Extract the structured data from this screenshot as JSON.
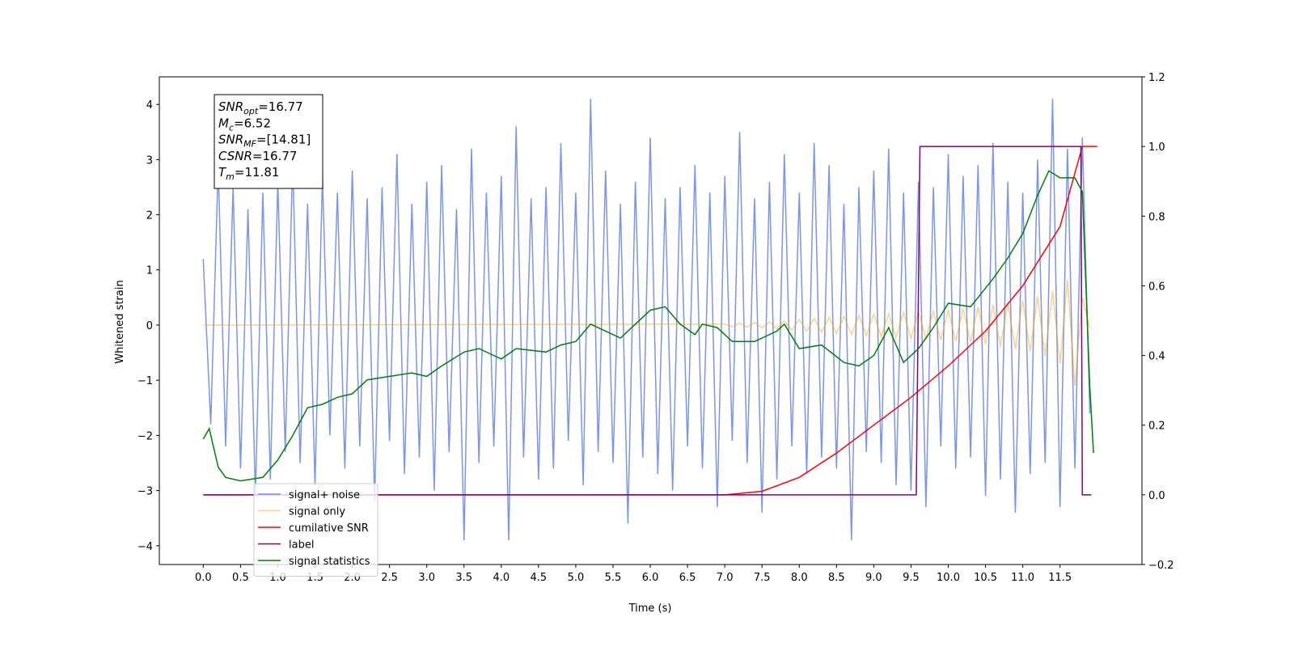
{
  "chart_data": {
    "type": "line",
    "xlabel": "Time (s)",
    "ylabel": "Whitened strain",
    "xlim": [
      -0.59,
      12.6
    ],
    "ylim": [
      -4.34,
      4.5
    ],
    "y2lim": [
      -0.2,
      1.2
    ],
    "xticks": [
      {
        "value": 0,
        "label": "0.0"
      },
      0.5,
      {
        "value": 1,
        "label": "1.0"
      },
      1.5,
      {
        "value": 2,
        "label": "2.0"
      },
      2.5,
      {
        "value": 3,
        "label": "3.0"
      },
      3.5,
      {
        "value": 4,
        "label": "4.0"
      },
      4.5,
      {
        "value": 5,
        "label": "5.0"
      },
      5.5,
      {
        "value": 6,
        "label": "6.0"
      },
      6.5,
      {
        "value": 7,
        "label": "7.0"
      },
      7.5,
      {
        "value": 8,
        "label": "8.0"
      },
      8.5,
      {
        "value": 9,
        "label": "9.0"
      },
      9.5,
      {
        "value": 10,
        "label": "10.0"
      },
      10.5,
      {
        "value": 11,
        "label": "11.0"
      },
      11.5
    ],
    "yticks": [
      {
        "value": -4,
        "label": "−4"
      },
      {
        "value": -3,
        "label": "−3"
      },
      {
        "value": -2,
        "label": "−2"
      },
      {
        "value": -1,
        "label": "−1"
      },
      0,
      1,
      2,
      3,
      4
    ],
    "y2ticks": [
      {
        "value": -0.2,
        "label": "−0.2"
      },
      {
        "value": 0,
        "label": "0.0"
      },
      0.2,
      0.4,
      0.6,
      0.8,
      {
        "value": 1,
        "label": "1.0"
      },
      1.2
    ],
    "annotation": [
      {
        "main": "SNR",
        "sub": "opt",
        "rest": "=16.77"
      },
      {
        "main": "M",
        "sub": "c",
        "rest": "=6.52"
      },
      {
        "main": "SNR",
        "sub": "MF",
        "rest": "=[14.81]"
      },
      {
        "main": "CSNR",
        "rest": "=16.77"
      },
      {
        "main": "T",
        "sub": "m",
        "rest": "=11.81"
      }
    ],
    "legend": "lower left",
    "series": [
      {
        "name": "signal+ noise",
        "color": "#4169e1",
        "alpha": 0.7,
        "x": [
          0,
          0.1,
          0.2,
          0.3,
          0.4,
          0.5,
          0.6,
          0.7,
          0.8,
          0.9,
          1,
          1.1,
          1.2,
          1.3,
          1.4,
          1.5,
          1.6,
          1.7,
          1.8,
          1.9,
          2,
          2.1,
          2.2,
          2.3,
          2.4,
          2.5,
          2.6,
          2.7,
          2.8,
          2.9,
          3,
          3.1,
          3.2,
          3.3,
          3.4,
          3.5,
          3.6,
          3.7,
          3.8,
          3.9,
          4,
          4.1,
          4.2,
          4.3,
          4.4,
          4.5,
          4.6,
          4.7,
          4.8,
          4.9,
          5,
          5.1,
          5.2,
          5.3,
          5.4,
          5.5,
          5.6,
          5.7,
          5.8,
          5.9,
          6,
          6.1,
          6.2,
          6.3,
          6.4,
          6.5,
          6.6,
          6.7,
          6.8,
          6.9,
          7,
          7.1,
          7.2,
          7.3,
          7.4,
          7.5,
          7.6,
          7.7,
          7.8,
          7.9,
          8,
          8.1,
          8.2,
          8.3,
          8.4,
          8.5,
          8.6,
          8.7,
          8.8,
          8.9,
          9,
          9.1,
          9.2,
          9.3,
          9.4,
          9.5,
          9.6,
          9.7,
          9.8,
          9.9,
          10,
          10.1,
          10.2,
          10.3,
          10.4,
          10.5,
          10.6,
          10.7,
          10.8,
          10.9,
          11,
          11.1,
          11.2,
          11.3,
          11.4,
          11.5,
          11.6,
          11.7,
          11.8,
          11.9
        ],
        "values": [
          1.2,
          -1.8,
          2.9,
          -2.2,
          2.5,
          -2.6,
          2.1,
          -3.1,
          2.4,
          -2.8,
          2.6,
          -2.3,
          3.0,
          -2.5,
          2.2,
          -2.9,
          2.7,
          -2.0,
          2.4,
          -2.6,
          2.8,
          -2.2,
          2.3,
          -3.2,
          2.5,
          -2.1,
          3.1,
          -2.7,
          2.2,
          -2.4,
          2.6,
          -3.0,
          2.9,
          -2.3,
          2.1,
          -3.9,
          3.2,
          -2.5,
          2.4,
          -2.2,
          2.7,
          -3.9,
          3.6,
          -2.4,
          2.3,
          -2.8,
          2.5,
          -2.6,
          3.3,
          -2.1,
          2.4,
          -2.9,
          4.1,
          -2.3,
          2.8,
          -2.5,
          2.2,
          -3.6,
          2.6,
          -2.4,
          3.4,
          -2.7,
          2.3,
          -3.0,
          2.5,
          -2.2,
          2.9,
          -2.6,
          2.4,
          -3.3,
          2.7,
          -2.1,
          3.5,
          -2.5,
          2.3,
          -3.4,
          2.6,
          -2.8,
          3.1,
          -2.2,
          2.4,
          -2.7,
          3.3,
          -2.4,
          2.9,
          -2.6,
          2.2,
          -3.9,
          2.5,
          -2.3,
          2.8,
          -2.5,
          3.2,
          -2.9,
          2.4,
          -3.0,
          2.6,
          -3.3,
          2.5,
          -2.2,
          3.1,
          -2.6,
          2.7,
          -2.4,
          2.9,
          -3.1,
          3.3,
          -2.8,
          2.6,
          -3.4,
          2.4,
          -2.7,
          3.0,
          -2.5,
          4.1,
          -3.3,
          3.2,
          -2.6,
          3.4,
          -1.6
        ]
      },
      {
        "name": "signal only",
        "color": "#ffa500",
        "alpha": 0.5,
        "x": [
          0,
          7,
          7.1,
          7.2,
          7.3,
          7.4,
          7.5,
          7.6,
          7.7,
          7.8,
          7.9,
          8,
          8.1,
          8.2,
          8.3,
          8.4,
          8.5,
          8.6,
          8.7,
          8.8,
          8.9,
          9,
          9.1,
          9.2,
          9.3,
          9.4,
          9.5,
          9.6,
          9.7,
          9.8,
          9.9,
          10,
          10.1,
          10.2,
          10.3,
          10.4,
          10.5,
          10.6,
          10.7,
          10.8,
          10.9,
          11,
          11.1,
          11.2,
          11.3,
          11.4,
          11.5,
          11.6,
          11.7,
          11.8,
          11.9
        ],
        "values": [
          0,
          0.02,
          -0.03,
          0.04,
          -0.04,
          0.05,
          -0.05,
          0.06,
          -0.07,
          0.08,
          -0.09,
          0.1,
          -0.11,
          0.12,
          -0.13,
          0.14,
          -0.15,
          0.16,
          -0.17,
          0.18,
          -0.19,
          0.2,
          -0.21,
          0.21,
          -0.22,
          0.23,
          -0.24,
          0.24,
          -0.25,
          0.26,
          -0.27,
          0.28,
          -0.29,
          0.3,
          -0.31,
          0.33,
          -0.35,
          0.37,
          -0.39,
          0.41,
          -0.43,
          0.45,
          -0.48,
          0.52,
          -0.56,
          0.62,
          -0.7,
          0.82,
          -1.1,
          0.5,
          -0.05
        ]
      },
      {
        "name": "cumilative SNR",
        "color": "#ff0000",
        "alpha": 1,
        "axis": "y2",
        "x": [
          0,
          7,
          7.5,
          8,
          8.5,
          9,
          9.5,
          10,
          10.5,
          11,
          11.5,
          11.8,
          12
        ],
        "values": [
          0,
          0,
          0.01,
          0.05,
          0.12,
          0.2,
          0.28,
          0.37,
          0.47,
          0.6,
          0.77,
          1,
          1
        ]
      },
      {
        "name": "label",
        "color": "#800080",
        "alpha": 1,
        "axis": "y2",
        "x": [
          0,
          9.57,
          9.62,
          11.78,
          11.8,
          11.92
        ],
        "values": [
          0,
          0,
          1,
          1,
          0,
          0
        ]
      },
      {
        "name": "signal statistics",
        "color": "#008000",
        "alpha": 1,
        "axis": "y2",
        "x": [
          0,
          0.08,
          0.2,
          0.3,
          0.5,
          0.8,
          1,
          1.2,
          1.4,
          1.6,
          1.8,
          2,
          2.2,
          2.5,
          2.8,
          3,
          3.2,
          3.5,
          3.7,
          4,
          4.2,
          4.6,
          4.8,
          5,
          5.2,
          5.4,
          5.6,
          5.8,
          6,
          6.2,
          6.4,
          6.6,
          6.7,
          6.9,
          7.1,
          7.4,
          7.7,
          7.8,
          8,
          8.3,
          8.6,
          8.8,
          9,
          9.2,
          9.4,
          9.6,
          9.8,
          10,
          10.3,
          10.6,
          10.8,
          11,
          11.2,
          11.35,
          11.5,
          11.7,
          11.8,
          11.9,
          11.95
        ],
        "values": [
          0.16,
          0.19,
          0.08,
          0.05,
          0.04,
          0.05,
          0.1,
          0.17,
          0.25,
          0.26,
          0.28,
          0.29,
          0.33,
          0.34,
          0.35,
          0.34,
          0.37,
          0.41,
          0.42,
          0.39,
          0.42,
          0.41,
          0.43,
          0.44,
          0.49,
          0.47,
          0.45,
          0.49,
          0.53,
          0.54,
          0.49,
          0.46,
          0.49,
          0.48,
          0.44,
          0.44,
          0.47,
          0.49,
          0.42,
          0.43,
          0.38,
          0.37,
          0.4,
          0.48,
          0.38,
          0.42,
          0.48,
          0.55,
          0.54,
          0.62,
          0.68,
          0.75,
          0.86,
          0.93,
          0.91,
          0.91,
          0.87,
          0.31,
          0.12
        ]
      }
    ]
  }
}
